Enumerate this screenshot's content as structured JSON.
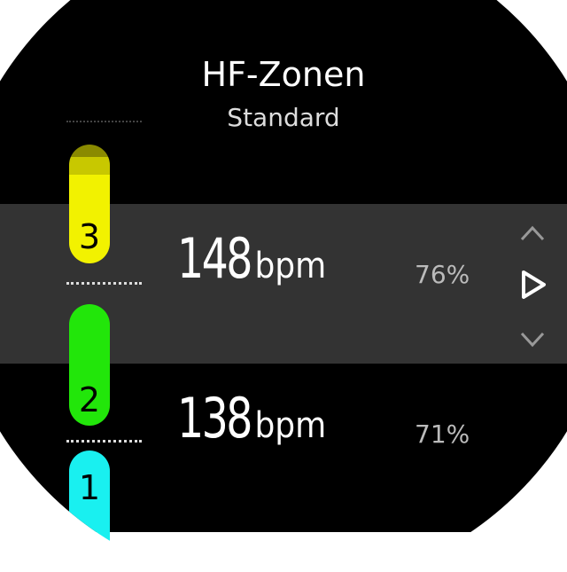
{
  "header": {
    "title": "HF-Zonen",
    "subtitle": "Standard"
  },
  "zones": [
    {
      "number": "3",
      "bpm": "148",
      "unit": "bpm",
      "percent": "76%",
      "color": "#f2f200",
      "selected": true
    },
    {
      "number": "2",
      "bpm": "138",
      "unit": "bpm",
      "percent": "71%",
      "color": "#22e60a",
      "selected": false
    },
    {
      "number": "1",
      "color": "#19f0f0"
    }
  ],
  "controls": {
    "up": "chevron-up-icon",
    "select": "play-icon",
    "down": "chevron-down-icon"
  },
  "colors": {
    "background": "#000000",
    "selected_band": "#333333"
  }
}
